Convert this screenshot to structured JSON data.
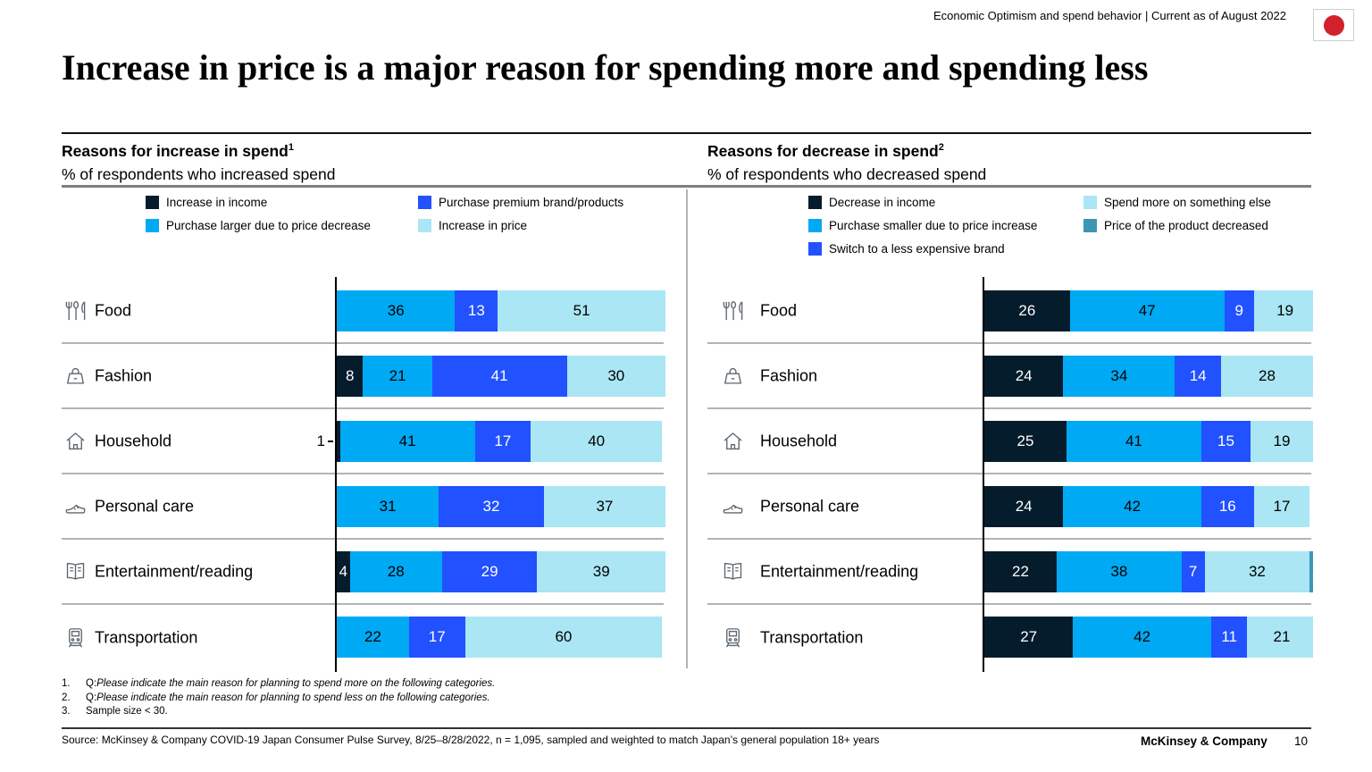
{
  "page": {
    "header_right": "Economic Optimism and spend behavior | Current as of August 2022",
    "title": "Increase in price is a major reason for spending more and spending less",
    "footer_brand": "McKinsey & Company",
    "page_number": "10",
    "source": "Source: McKinsey & Company COVID-19 Japan Consumer Pulse Survey, 8/25–8/28/2022, n = 1,095, sampled and weighted to match Japan’s general population 18+ years",
    "footnotes": [
      {
        "num": "1.",
        "normal": "Q: ",
        "italic": "Please indicate the main reason for planning to spend more on the following categories."
      },
      {
        "num": "2.",
        "normal": "Q: ",
        "italic": "Please indicate the main reason for planning to spend less on the following categories."
      },
      {
        "num": "3.",
        "normal": "Sample size < 30.",
        "italic": ""
      }
    ]
  },
  "colors": {
    "dark_navy": "#051c2c",
    "cyan": "#00a9f4",
    "electric_blue": "#2251ff",
    "pale_cyan": "#aae6f3",
    "teal": "#3c96b4",
    "flag_red": "#d0212d"
  },
  "categories": [
    {
      "label": "Food",
      "icon": "cutlery-icon"
    },
    {
      "label": "Fashion",
      "icon": "handbag-icon"
    },
    {
      "label": "Household",
      "icon": "house-icon"
    },
    {
      "label": "Personal care",
      "icon": "shoe-icon"
    },
    {
      "label": "Entertainment/reading",
      "icon": "open-book-icon"
    },
    {
      "label": "Transportation",
      "icon": "train-icon"
    }
  ],
  "chart_data": [
    {
      "type": "bar",
      "stacked": true,
      "orientation": "horizontal",
      "title": "Reasons for increase in spend",
      "title_footnote_ref": "1",
      "subtitle": "% of respondents who increased spend",
      "unit": "%",
      "xlim": [
        0,
        100
      ],
      "categories": [
        "Food",
        "Fashion",
        "Household",
        "Personal care",
        "Entertainment/reading",
        "Transportation"
      ],
      "legend": [
        {
          "label": "Increase in income",
          "color_key": "dark_navy"
        },
        {
          "label": "Purchase larger due to price decrease",
          "color_key": "cyan"
        },
        {
          "label": "Purchase premium brand/products",
          "color_key": "electric_blue"
        },
        {
          "label": "Increase in price",
          "color_key": "pale_cyan"
        }
      ],
      "series": [
        {
          "name": "Increase in income",
          "color_key": "dark_navy",
          "values": [
            0,
            8,
            1,
            0,
            4,
            0
          ]
        },
        {
          "name": "Purchase larger due to price decrease",
          "color_key": "cyan",
          "values": [
            36,
            21,
            41,
            31,
            28,
            22
          ]
        },
        {
          "name": "Purchase premium brand/products",
          "color_key": "electric_blue",
          "values": [
            13,
            41,
            17,
            32,
            29,
            17
          ]
        },
        {
          "name": "Increase in price",
          "color_key": "pale_cyan",
          "values": [
            51,
            30,
            40,
            37,
            39,
            60
          ]
        }
      ],
      "outside_label": {
        "series": 0,
        "category": 2
      }
    },
    {
      "type": "bar",
      "stacked": true,
      "orientation": "horizontal",
      "title": "Reasons for decrease in spend",
      "title_footnote_ref": "2",
      "subtitle": "% of respondents who decreased spend",
      "unit": "%",
      "xlim": [
        0,
        100
      ],
      "categories": [
        "Food",
        "Fashion",
        "Household",
        "Personal care",
        "Entertainment/reading",
        "Transportation"
      ],
      "legend": [
        {
          "label": "Decrease in income",
          "color_key": "dark_navy"
        },
        {
          "label": "Purchase smaller due to price increase",
          "color_key": "cyan"
        },
        {
          "label": "Switch to a less expensive brand",
          "color_key": "electric_blue"
        },
        {
          "label": "Spend more on something else",
          "color_key": "pale_cyan"
        },
        {
          "label": "Price of the product decreased",
          "color_key": "teal"
        }
      ],
      "series": [
        {
          "name": "Decrease in income",
          "color_key": "dark_navy",
          "values": [
            26,
            24,
            25,
            24,
            22,
            27
          ]
        },
        {
          "name": "Purchase smaller due to price increase",
          "color_key": "cyan",
          "values": [
            47,
            34,
            41,
            42,
            38,
            42
          ]
        },
        {
          "name": "Switch to a less expensive brand",
          "color_key": "electric_blue",
          "values": [
            9,
            14,
            15,
            16,
            7,
            11
          ]
        },
        {
          "name": "Spend more on something else",
          "color_key": "pale_cyan",
          "values": [
            19,
            28,
            19,
            17,
            32,
            21
          ]
        },
        {
          "name": "Price of the product decreased",
          "color_key": "teal",
          "values": [
            0,
            0,
            0,
            0,
            1,
            0
          ]
        }
      ]
    }
  ]
}
